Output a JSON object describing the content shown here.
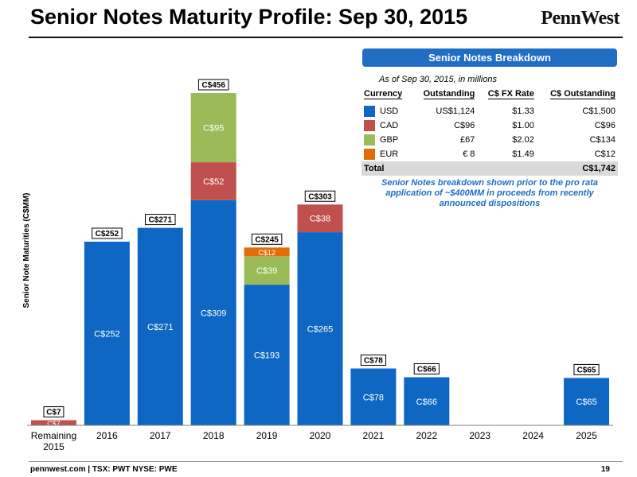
{
  "header": {
    "title": "Senior Notes Maturity Profile: Sep 30, 2015",
    "logo_text": "PennWest"
  },
  "footer": {
    "text": "pennwest.com | TSX: PWT  NYSE: PWE",
    "page_number": "19"
  },
  "colors": {
    "USD": "#0f67c4",
    "CAD": "#c0504d",
    "GBP": "#9bbb59",
    "EUR": "#e36c0a",
    "accent": "#1f6ec4"
  },
  "chart_data": {
    "type": "bar",
    "stacked": true,
    "title": "",
    "xlabel": "",
    "ylabel": "Senior Note Maturities (C$MM)",
    "ylim": [
      0,
      480
    ],
    "grid": false,
    "categories": [
      "Remaining 2015",
      "2016",
      "2017",
      "2018",
      "2019",
      "2020",
      "2021",
      "2022",
      "2023",
      "2024",
      "2025"
    ],
    "series": [
      {
        "name": "USD",
        "color": "#0f67c4",
        "values": [
          0,
          252,
          271,
          309,
          193,
          265,
          78,
          66,
          0,
          0,
          65
        ],
        "labels": [
          "",
          "C$252",
          "C$271",
          "C$309",
          "C$193",
          "C$265",
          "C$78",
          "C$66",
          "",
          "",
          "C$65"
        ]
      },
      {
        "name": "CAD",
        "color": "#c0504d",
        "values": [
          7,
          0,
          0,
          52,
          0,
          38,
          0,
          0,
          0,
          0,
          0
        ],
        "labels": [
          "C$7",
          "",
          "",
          "C$52",
          "",
          "C$38",
          "",
          "",
          "",
          "",
          ""
        ]
      },
      {
        "name": "GBP",
        "color": "#9bbb59",
        "values": [
          0,
          0,
          0,
          95,
          39,
          0,
          0,
          0,
          0,
          0,
          0
        ],
        "labels": [
          "",
          "",
          "",
          "C$95",
          "C$39",
          "",
          "",
          "",
          "",
          "",
          ""
        ]
      },
      {
        "name": "EUR",
        "color": "#e36c0a",
        "values": [
          0,
          0,
          0,
          0,
          12,
          0,
          0,
          0,
          0,
          0,
          0
        ],
        "labels": [
          "",
          "",
          "",
          "",
          "C$12",
          "",
          "",
          "",
          "",
          "",
          ""
        ]
      }
    ],
    "totals": [
      7,
      252,
      271,
      456,
      245,
      303,
      78,
      66,
      0,
      0,
      65
    ],
    "total_labels": [
      "C$7",
      "C$252",
      "C$271",
      "C$456",
      "C$245",
      "C$303",
      "C$78",
      "C$66",
      "",
      "",
      "C$65"
    ]
  },
  "breakdown": {
    "header": "Senior Notes Breakdown",
    "subtitle": "As of Sep 30, 2015, in millions",
    "columns": [
      "Currency",
      "Outstanding",
      "C$ FX Rate",
      "C$ Outstanding"
    ],
    "rows": [
      {
        "currency": "USD",
        "outstanding": "US$1,124",
        "fx_rate": "$1.33",
        "cad_outstanding": "C$1,500"
      },
      {
        "currency": "CAD",
        "outstanding": "C$96",
        "fx_rate": "$1.00",
        "cad_outstanding": "C$96"
      },
      {
        "currency": "GBP",
        "outstanding": "£67",
        "fx_rate": "$2.02",
        "cad_outstanding": "C$134"
      },
      {
        "currency": "EUR",
        "outstanding": "€ 8",
        "fx_rate": "$1.49",
        "cad_outstanding": "C$12"
      }
    ],
    "total": {
      "label": "Total",
      "value": "C$1,742"
    },
    "note": "Senior Notes breakdown shown prior to the pro rata application of ~$400MM in proceeds from recently announced dispositions"
  }
}
